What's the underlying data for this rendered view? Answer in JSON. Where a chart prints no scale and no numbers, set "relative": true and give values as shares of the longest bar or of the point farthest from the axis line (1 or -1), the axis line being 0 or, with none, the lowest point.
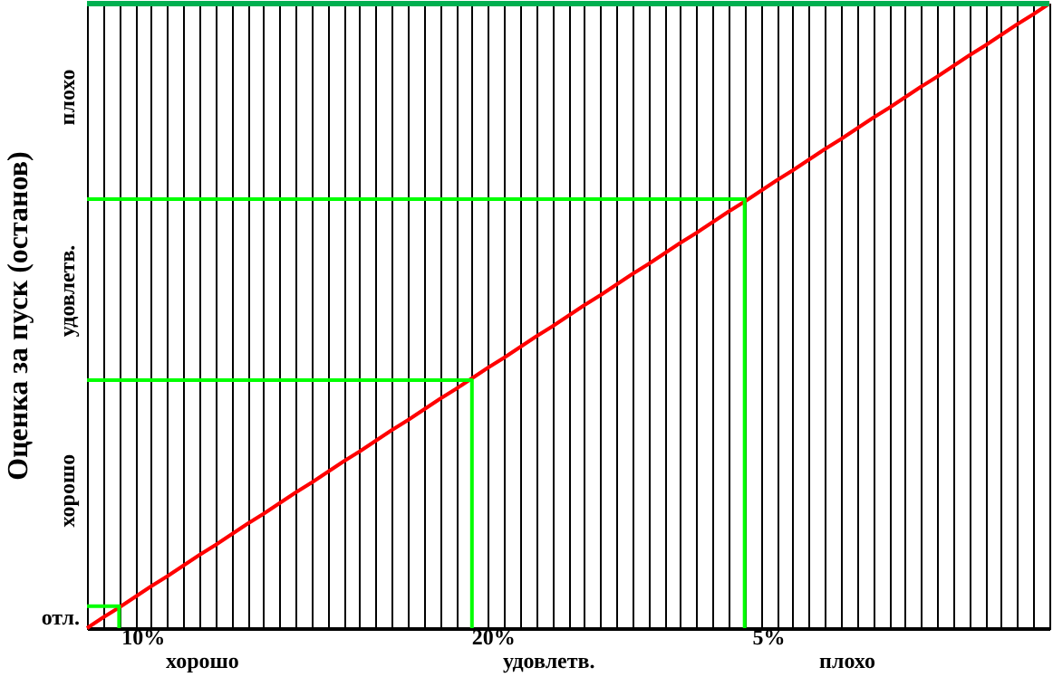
{
  "chart_data": {
    "type": "line",
    "relative": true,
    "ylabel": "Оценка за пуск (останов)",
    "grid": "x",
    "categories": [
      null,
      null,
      null,
      null,
      null,
      null,
      null,
      null,
      null,
      null,
      null,
      null,
      null,
      null,
      null,
      null,
      null,
      null,
      null,
      null,
      null,
      null,
      null,
      null,
      null,
      null,
      null,
      null,
      null,
      null,
      null,
      null,
      null,
      null,
      null,
      null,
      null,
      null,
      null,
      null,
      null,
      null,
      null,
      null,
      null,
      null,
      null,
      null,
      null,
      null,
      null,
      null,
      null,
      null,
      null,
      null,
      null,
      null,
      null,
      null,
      null
    ],
    "series": [
      {
        "color": "#ff0000",
        "values": [
          0,
          0.017,
          0.033,
          0.05,
          0.067,
          0.083,
          0.1,
          0.117,
          0.133,
          0.15,
          0.167,
          0.183,
          0.2,
          0.217,
          0.233,
          0.25,
          0.267,
          0.283,
          0.3,
          0.317,
          0.333,
          0.35,
          0.367,
          0.383,
          0.4,
          0.417,
          0.433,
          0.45,
          0.467,
          0.483,
          0.5,
          0.517,
          0.533,
          0.55,
          0.567,
          0.583,
          0.6,
          0.617,
          0.633,
          0.65,
          0.667,
          0.683,
          0.7,
          0.717,
          0.733,
          0.75,
          0.767,
          0.783,
          0.8,
          0.817,
          0.833,
          0.85,
          0.867,
          0.883,
          0.9,
          0.917,
          0.933,
          0.95,
          0.967,
          0.983,
          1
        ]
      },
      {
        "type": "step",
        "color": "#00ff00",
        "values": [
          0.035,
          0.035,
          0,
          null,
          null,
          null,
          null,
          null,
          null,
          null,
          null,
          null,
          null,
          null,
          null,
          null,
          null,
          null,
          null,
          null,
          null,
          null,
          null,
          null,
          null,
          null,
          null,
          null,
          null,
          null,
          null,
          null,
          null,
          null,
          null,
          null,
          null,
          null,
          null,
          null,
          null,
          null,
          null,
          null,
          null,
          null,
          null,
          null,
          null,
          null,
          null,
          null,
          null,
          null,
          null,
          null,
          null,
          null,
          null,
          null,
          null
        ]
      },
      {
        "type": "step",
        "color": "#00ff00",
        "values": [
          0.397,
          0.397,
          0.397,
          0.397,
          0.397,
          0.397,
          0.397,
          0.397,
          0.397,
          0.397,
          0.397,
          0.397,
          0.397,
          0.397,
          0.397,
          0.397,
          0.397,
          0.397,
          0.397,
          0.397,
          0.397,
          0.397,
          0.397,
          0.397,
          0,
          null,
          null,
          null,
          null,
          null,
          null,
          null,
          null,
          null,
          null,
          null,
          null,
          null,
          null,
          null,
          null,
          null,
          null,
          null,
          null,
          null,
          null,
          null,
          null,
          null,
          null,
          null,
          null,
          null,
          null,
          null,
          null,
          null,
          null,
          null,
          null
        ]
      },
      {
        "type": "step",
        "color": "#00ff00",
        "values": [
          0.687,
          0.687,
          0.687,
          0.687,
          0.687,
          0.687,
          0.687,
          0.687,
          0.687,
          0.687,
          0.687,
          0.687,
          0.687,
          0.687,
          0.687,
          0.687,
          0.687,
          0.687,
          0.687,
          0.687,
          0.687,
          0.687,
          0.687,
          0.687,
          0.687,
          0.687,
          0.687,
          0.687,
          0.687,
          0.687,
          0.687,
          0.687,
          0.687,
          0.687,
          0.687,
          0.687,
          0.687,
          0.687,
          0.687,
          0.687,
          0.687,
          0,
          null,
          null,
          null,
          null,
          null,
          null,
          null,
          null,
          null,
          null,
          null,
          null,
          null,
          null,
          null,
          null,
          null,
          null,
          null
        ]
      }
    ],
    "annotations": [
      "10%",
      "20%",
      "5%",
      "хорошо",
      "удовлетв.",
      "плохо",
      "отл.",
      "хорошо",
      "удовлетв.",
      "плохо"
    ],
    "ref_lines": [
      {
        "axis": "y",
        "value": 1,
        "color": "#00b050"
      }
    ]
  }
}
